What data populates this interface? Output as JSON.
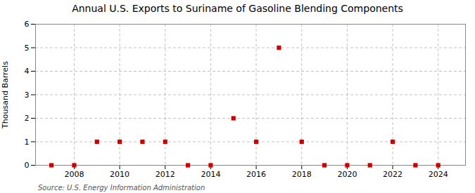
{
  "chart_data": {
    "type": "scatter",
    "title": "Annual U.S. Exports to Suriname of Gasoline Blending Components",
    "ylabel": "Thousand Barrels",
    "annotations": [
      "Source: U.S. Energy Information Administration"
    ],
    "x": [
      2007,
      2008,
      2009,
      2010,
      2011,
      2012,
      2013,
      2014,
      2015,
      2016,
      2017,
      2018,
      2019,
      2020,
      2021,
      2022,
      2023,
      2024
    ],
    "values": [
      0,
      0,
      1,
      1,
      1,
      1,
      0,
      0,
      2,
      1,
      5,
      1,
      0,
      0,
      0,
      1,
      0,
      0
    ],
    "color": "#cc0000",
    "marker": "square",
    "xlim": [
      2006.3,
      2025.2
    ],
    "ylim": [
      0,
      6
    ],
    "xticks": [
      2008,
      2010,
      2012,
      2014,
      2016,
      2018,
      2020,
      2022,
      2024
    ],
    "yticks": [
      0,
      1,
      2,
      3,
      4,
      5,
      6
    ],
    "grid": true
  }
}
